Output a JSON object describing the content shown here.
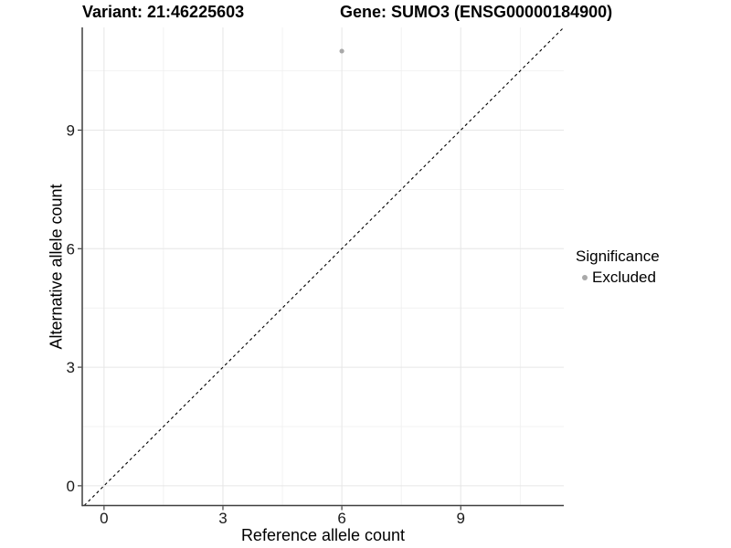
{
  "figure": {
    "title_variant": "Variant: 21:46225603",
    "title_gene": "Gene: SUMO3 (ENSG00000184900)"
  },
  "axes": {
    "x_label": "Reference allele count",
    "y_label": "Alternative allele count"
  },
  "legend": {
    "title": "Significance",
    "items": [
      {
        "label": "Excluded",
        "color": "#a9a9a9",
        "marker": "circle"
      }
    ]
  },
  "colors": {
    "background": "#ffffff",
    "grid_major": "#e6e6e6",
    "grid_minor": "#efefef",
    "axis_line": "#3f3f3f",
    "tick_mark": "#3f3f3f",
    "tick_text": "#1a1a1a",
    "point": "#a9a9a9",
    "identity_line": "#000000"
  },
  "chart_data": {
    "type": "scatter",
    "title": "Variant: 21:46225603 | Gene: SUMO3 (ENSG00000184900)",
    "xlabel": "Reference allele count",
    "ylabel": "Alternative allele count",
    "xlim": [
      -0.55,
      11.6
    ],
    "ylim": [
      -0.5,
      11.6
    ],
    "x_ticks": [
      0,
      3,
      6,
      9
    ],
    "y_ticks": [
      0,
      3,
      6,
      9
    ],
    "x_minor": [
      1.5,
      4.5,
      7.5,
      10.5
    ],
    "y_minor": [
      1.5,
      4.5,
      7.5,
      10.5
    ],
    "grid": true,
    "legend_position": "right",
    "series": [
      {
        "name": "Excluded",
        "color": "#a9a9a9",
        "points": [
          {
            "x": 6,
            "y": 11
          }
        ]
      }
    ],
    "reference_line": {
      "type": "identity",
      "slope": 1,
      "intercept": 0,
      "style": "dashed"
    }
  }
}
